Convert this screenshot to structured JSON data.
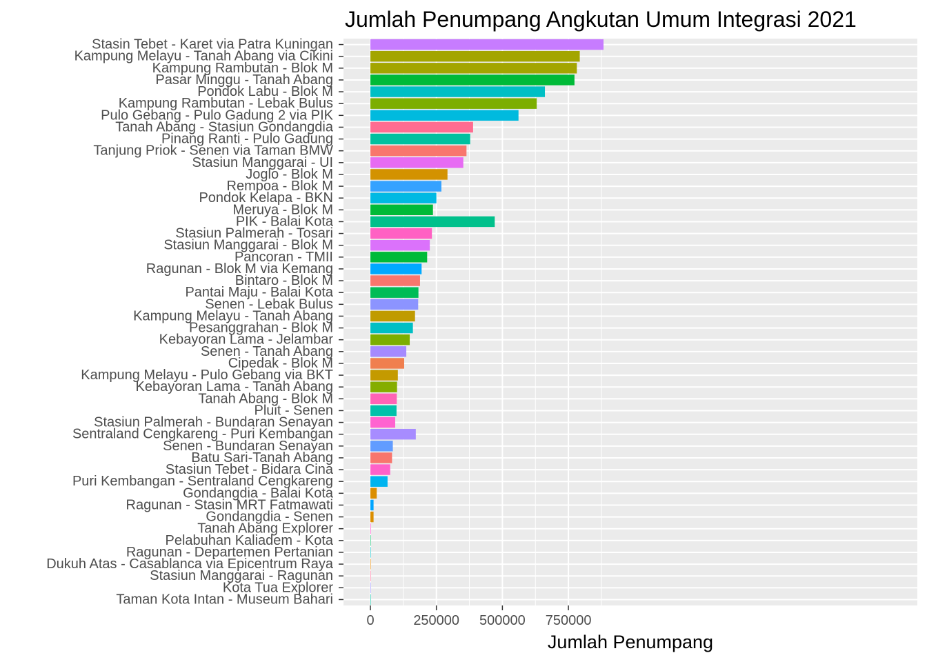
{
  "chart_data": {
    "type": "bar",
    "orientation": "horizontal",
    "title": "Jumlah Penumpang Angkutan Umum Integrasi 2021",
    "xlabel": "Jumlah Penumpang",
    "ylabel": "",
    "xlim": [
      -43000,
      928000
    ],
    "xticks": [
      0,
      250000,
      500000,
      750000
    ],
    "xtick_labels": [
      "0",
      "250000",
      "500000",
      "750000"
    ],
    "grid": true,
    "legend": "none",
    "categories": [
      "Stasin Tebet - Karet via Patra Kuningan",
      "Kampung Melayu - Tanah Abang via Cikini",
      "Kampung Rambutan - Blok M",
      "Pasar Minggu - Tanah Abang",
      "Pondok  Labu - Blok M",
      "Kampung Rambutan - Lebak Bulus",
      "Pulo Gebang - Pulo Gadung 2 via PIK",
      "Tanah Abang - Stasiun Gondangdia",
      "Pinang Ranti - Pulo Gadung",
      "Tanjung Priok - Senen via Taman  BMW",
      "Stasiun Manggarai - UI",
      "Joglo - Blok M",
      "Rempoa - Blok M",
      "Pondok Kelapa - BKN",
      "Meruya - Blok M",
      "PIK - Balai Kota",
      "Stasiun Palmerah - Tosari",
      "Stasiun Manggarai - Blok  M",
      "Pancoran - TMII",
      "Ragunan - Blok M via Kemang",
      "Bintaro - Blok M",
      "Pantai Maju - Balai Kota",
      "Senen - Lebak Bulus",
      "Kampung Melayu - Tanah Abang",
      "Pesanggrahan - Blok M",
      "Kebayoran Lama - Jelambar",
      "Senen - Tanah Abang",
      "Cipedak - Blok M",
      "Kampung Melayu - Pulo Gebang via BKT",
      "Kebayoran Lama - Tanah Abang",
      "Tanah Abang - Blok M",
      "Pluit - Senen",
      "Stasiun Palmerah - Bundaran Senayan",
      "Sentraland Cengkareng - Puri Kembangan",
      "Senen - Bundaran Senayan",
      "Batu Sari-Tanah Abang",
      "Stasiun Tebet - Bidara Cina",
      "Puri Kembangan - Sentraland Cengkareng",
      "Gondangdia - Balai Kota",
      "Ragunan - Stasin MRT Fatmawati",
      "Gondangdia - Senen",
      "Tanah Abang Explorer",
      "Pelabuhan Kaliadem - Kota",
      "Ragunan - Departemen Pertanian",
      "Dukuh Atas - Casablanca via Epicentrum Raya",
      "Stasiun Manggarai - Ragunan",
      "Kota Tua Explorer",
      "Taman Kota Intan - Museum Bahari"
    ],
    "values": [
      883000,
      793000,
      782000,
      773000,
      661000,
      630000,
      561000,
      389000,
      378000,
      364000,
      352000,
      292000,
      269000,
      250000,
      237000,
      471000,
      233000,
      225000,
      215000,
      194000,
      188000,
      182000,
      181000,
      169000,
      161000,
      149000,
      136000,
      128000,
      104000,
      101000,
      100000,
      99000,
      94000,
      172000,
      85000,
      82000,
      75000,
      65000,
      24000,
      12000,
      12000,
      2000,
      1000,
      1000,
      800,
      300,
      200,
      100
    ],
    "colors": [
      "#C77CFF",
      "#A3A500",
      "#A3A500",
      "#00BA38",
      "#00BFC4",
      "#7CAE00",
      "#00BADE",
      "#FF6C91",
      "#00C19F",
      "#F8766D",
      "#E76BF3",
      "#D39200",
      "#35A2FF",
      "#00B9E3",
      "#00BA38",
      "#00C08B",
      "#FF61C3",
      "#DB72FB",
      "#00BA38",
      "#00A9FF",
      "#F8766D",
      "#00BC56",
      "#8C94FF",
      "#C09B00",
      "#00BFC4",
      "#7CAE00",
      "#A58AFF",
      "#F07F4F",
      "#C49A00",
      "#85AD00",
      "#FF63B6",
      "#00C1AA",
      "#FF63D0",
      "#A78CFF",
      "#619CFF",
      "#F8766D",
      "#FF61C9",
      "#00B4EF",
      "#DB8E00",
      "#00A5FF",
      "#DB8E00",
      "#FD61D1",
      "#00BE67",
      "#00BFC4",
      "#E58700",
      "#FF6A98",
      "#9590FF",
      "#00C1A3"
    ],
    "panel_background": "#EBEBEB",
    "grid_color": "#FFFFFF"
  }
}
